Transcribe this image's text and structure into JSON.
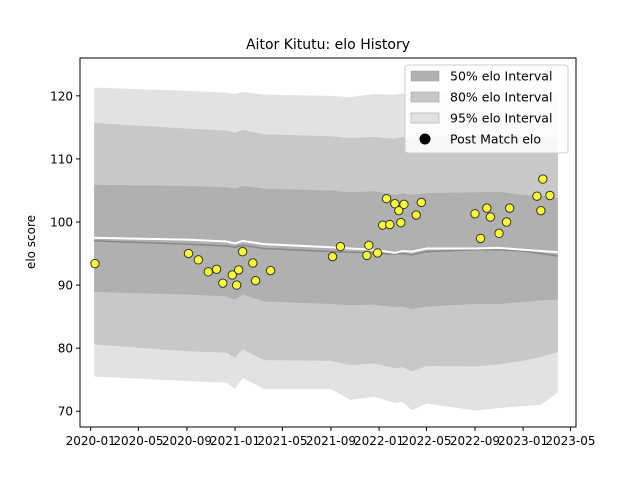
{
  "chart_data": {
    "type": "scatter",
    "title": "Aitor Kitutu: elo History",
    "xlabel": "",
    "ylabel": "elo score",
    "xlim": [
      "2019-12-05",
      "2023-05-15"
    ],
    "ylim": [
      67.5,
      126
    ],
    "x_ticks": [
      "2020-01",
      "2020-05",
      "2020-09",
      "2021-01",
      "2021-05",
      "2021-09",
      "2022-01",
      "2022-05",
      "2022-09",
      "2023-01",
      "2023-05"
    ],
    "y_ticks": [
      70,
      80,
      90,
      100,
      110,
      120
    ],
    "grid": false,
    "legend_position": "top-right",
    "legend": [
      {
        "label": "50% elo Interval",
        "color": "#b0b0b0"
      },
      {
        "label": "80% elo Interval",
        "color": "#c8c8c8"
      },
      {
        "label": "95% elo Interval",
        "color": "#e2e2e2"
      },
      {
        "label": "Post Match elo",
        "color": "#000000"
      }
    ],
    "colors": {
      "points": "#ffff33",
      "point_edge": "#333333",
      "mean_line": "#888888",
      "post_line": "#ffffff"
    },
    "interval_x": [
      "2020-01-10",
      "2020-09-01",
      "2020-12-10",
      "2021-01-01",
      "2021-01-20",
      "2021-03-15",
      "2021-09-01",
      "2021-10-20",
      "2021-12-20",
      "2022-02-10",
      "2022-03-01",
      "2022-03-25",
      "2022-05-01",
      "2022-09-01",
      "2022-11-01",
      "2023-01-01",
      "2023-02-15",
      "2023-03-30"
    ],
    "series": [
      {
        "name": "95% elo Interval",
        "type": "band",
        "upper": [
          121.3,
          120.8,
          120.5,
          120.3,
          120.6,
          120.2,
          120.0,
          119.8,
          120.3,
          120.2,
          120.4,
          120.2,
          120.5,
          120.8,
          121.2,
          120.5,
          120.6,
          120.4
        ],
        "lower": [
          75.5,
          74.8,
          74.5,
          73.6,
          75.3,
          73.5,
          73.5,
          71.8,
          72.3,
          71.3,
          71.5,
          70.2,
          71.2,
          70.1,
          70.5,
          70.8,
          71.0,
          73.0
        ]
      },
      {
        "name": "80% elo Interval",
        "type": "band",
        "upper": [
          115.7,
          114.8,
          114.5,
          114.1,
          114.6,
          113.9,
          113.6,
          113.3,
          113.5,
          113.2,
          113.5,
          113.1,
          113.5,
          113.6,
          113.8,
          113.3,
          113.3,
          113.0
        ],
        "lower": [
          80.6,
          79.5,
          79.3,
          78.5,
          79.8,
          78.1,
          78.0,
          77.3,
          77.6,
          76.8,
          77.0,
          76.3,
          77.2,
          77.1,
          77.4,
          78.0,
          78.6,
          79.4
        ]
      },
      {
        "name": "50% elo Interval",
        "type": "band",
        "upper": [
          105.9,
          105.7,
          105.5,
          105.3,
          105.7,
          105.3,
          105.0,
          104.7,
          104.9,
          104.3,
          104.6,
          104.3,
          104.6,
          104.7,
          104.8,
          104.3,
          104.1,
          103.8
        ],
        "lower": [
          88.9,
          88.5,
          88.2,
          87.7,
          88.5,
          87.4,
          87.0,
          86.8,
          86.9,
          86.5,
          86.6,
          86.2,
          86.6,
          87.0,
          87.0,
          87.3,
          87.6,
          87.7
        ]
      },
      {
        "name": "mean",
        "type": "line",
        "values": [
          97.0,
          96.5,
          96.2,
          96.0,
          96.3,
          95.8,
          95.3,
          95.2,
          95.1,
          94.9,
          95.0,
          94.8,
          95.3,
          95.6,
          95.6,
          95.4,
          95.0,
          94.6
        ]
      },
      {
        "name": "post",
        "type": "line",
        "values": [
          97.5,
          97.2,
          96.9,
          96.6,
          97.0,
          96.5,
          96.0,
          95.8,
          95.6,
          95.1,
          95.4,
          95.3,
          95.8,
          95.8,
          95.9,
          95.6,
          95.4,
          95.2
        ]
      },
      {
        "name": "Post Match elo",
        "type": "scatter",
        "points": [
          [
            "2020-01-12",
            93.4
          ],
          [
            "2020-09-05",
            95.0
          ],
          [
            "2020-09-30",
            94.0
          ],
          [
            "2020-10-25",
            92.1
          ],
          [
            "2020-11-15",
            92.5
          ],
          [
            "2020-12-01",
            90.3
          ],
          [
            "2020-12-25",
            91.6
          ],
          [
            "2021-01-05",
            90.0
          ],
          [
            "2021-01-10",
            92.4
          ],
          [
            "2021-01-20",
            95.3
          ],
          [
            "2021-02-15",
            93.5
          ],
          [
            "2021-02-22",
            90.7
          ],
          [
            "2021-04-01",
            92.3
          ],
          [
            "2021-09-05",
            94.5
          ],
          [
            "2021-09-25",
            96.1
          ],
          [
            "2021-12-01",
            94.7
          ],
          [
            "2021-12-06",
            96.3
          ],
          [
            "2021-12-28",
            95.1
          ],
          [
            "2022-01-10",
            99.5
          ],
          [
            "2022-01-20",
            103.7
          ],
          [
            "2022-01-28",
            99.6
          ],
          [
            "2022-02-10",
            102.9
          ],
          [
            "2022-02-20",
            101.8
          ],
          [
            "2022-02-25",
            99.9
          ],
          [
            "2022-03-05",
            102.8
          ],
          [
            "2022-04-05",
            101.1
          ],
          [
            "2022-04-18",
            103.1
          ],
          [
            "2022-09-01",
            101.3
          ],
          [
            "2022-09-15",
            97.4
          ],
          [
            "2022-10-01",
            102.2
          ],
          [
            "2022-10-10",
            100.8
          ],
          [
            "2022-11-01",
            98.2
          ],
          [
            "2022-11-20",
            100.0
          ],
          [
            "2022-11-28",
            102.2
          ],
          [
            "2023-02-05",
            104.1
          ],
          [
            "2023-02-15",
            101.8
          ],
          [
            "2023-02-20",
            106.8
          ],
          [
            "2023-03-10",
            104.2
          ]
        ]
      }
    ]
  }
}
